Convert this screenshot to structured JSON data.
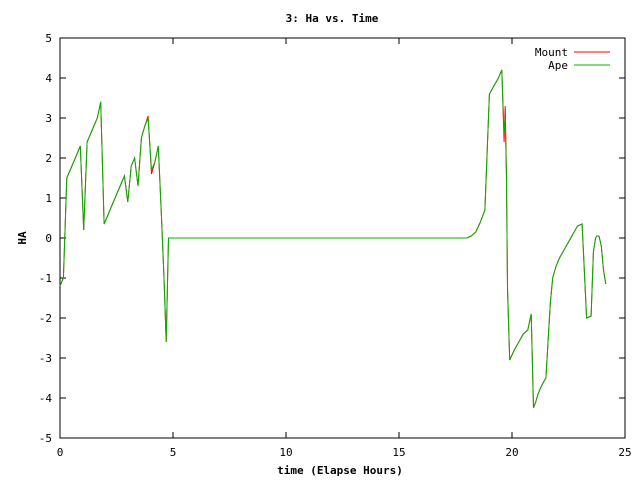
{
  "chart_data": {
    "type": "line",
    "title": "3: Ha vs. Time",
    "xlabel": "time (Elapse Hours)",
    "ylabel": "HA",
    "xlim": [
      0,
      25
    ],
    "ylim": [
      -5,
      5
    ],
    "xticks": [
      0,
      5,
      10,
      15,
      20,
      25
    ],
    "yticks": [
      -5,
      -4,
      -3,
      -2,
      -1,
      0,
      1,
      2,
      3,
      4,
      5
    ],
    "grid": false,
    "legend_position": "top-right",
    "series": [
      {
        "name": "Mount",
        "color": "#ff0000",
        "x": [
          0.0,
          0.15,
          0.3,
          0.45,
          0.6,
          0.75,
          0.9,
          1.05,
          1.2,
          1.35,
          1.5,
          1.65,
          1.8,
          1.95,
          2.1,
          2.25,
          2.4,
          2.55,
          2.7,
          2.85,
          3.0,
          3.15,
          3.3,
          3.45,
          3.6,
          3.75,
          3.9,
          4.05,
          4.2,
          4.35,
          4.5,
          4.6,
          4.7,
          4.8,
          4.95,
          5.1,
          5.25,
          5.4,
          5.55,
          5.7,
          5.85,
          6.0,
          8.0,
          10.0,
          12.0,
          14.0,
          16.0,
          18.0,
          18.2,
          18.4,
          18.6,
          18.8,
          19.0,
          19.2,
          19.4,
          19.55,
          19.65,
          19.7,
          19.75,
          19.8,
          19.9,
          20.1,
          20.3,
          20.5,
          20.7,
          20.85,
          20.95,
          21.05,
          21.15,
          21.3,
          21.5,
          21.7,
          21.8,
          21.85,
          21.95,
          22.1,
          22.3,
          22.5,
          22.7,
          22.9,
          23.1,
          23.3,
          23.5,
          23.6,
          23.7,
          23.75,
          23.85,
          23.95,
          24.05,
          24.15
        ],
        "y": [
          -1.2,
          -1.0,
          1.5,
          1.7,
          1.9,
          2.1,
          2.3,
          0.2,
          2.4,
          2.6,
          2.8,
          3.0,
          3.4,
          0.35,
          0.55,
          0.75,
          0.95,
          1.15,
          1.35,
          1.55,
          0.9,
          1.8,
          2.0,
          1.3,
          2.5,
          2.8,
          3.05,
          1.6,
          1.9,
          2.3,
          0.4,
          -1.0,
          -2.6,
          0.0,
          0.0,
          0.0,
          0.0,
          0.0,
          0.0,
          0.0,
          0.0,
          0.0,
          0.0,
          0.0,
          0.0,
          0.0,
          0.0,
          0.0,
          0.05,
          0.15,
          0.4,
          0.7,
          3.6,
          3.8,
          4.0,
          4.2,
          2.4,
          3.3,
          1.7,
          -1.3,
          -3.05,
          -2.8,
          -2.6,
          -2.4,
          -2.3,
          -1.9,
          -4.25,
          -4.1,
          -3.9,
          -3.7,
          -3.5,
          -1.6,
          -1.0,
          -0.9,
          -0.7,
          -0.5,
          -0.3,
          -0.1,
          0.1,
          0.3,
          0.35,
          -2.0,
          -1.95,
          -0.35,
          0.0,
          0.05,
          0.05,
          -0.2,
          -0.8,
          -1.15
        ]
      },
      {
        "name": "Ape",
        "color": "#00b000",
        "x": [
          0.0,
          0.15,
          0.3,
          0.45,
          0.6,
          0.75,
          0.9,
          1.05,
          1.2,
          1.35,
          1.5,
          1.65,
          1.8,
          1.95,
          2.1,
          2.25,
          2.4,
          2.55,
          2.7,
          2.85,
          3.0,
          3.15,
          3.3,
          3.45,
          3.6,
          3.75,
          3.9,
          4.05,
          4.2,
          4.35,
          4.5,
          4.6,
          4.7,
          4.8,
          4.95,
          5.1,
          5.25,
          5.4,
          5.55,
          5.7,
          5.85,
          6.0,
          8.0,
          10.0,
          12.0,
          14.0,
          16.0,
          18.0,
          18.2,
          18.4,
          18.6,
          18.8,
          19.0,
          19.2,
          19.4,
          19.55,
          19.65,
          19.7,
          19.75,
          19.8,
          19.9,
          20.1,
          20.3,
          20.5,
          20.7,
          20.85,
          20.95,
          21.05,
          21.15,
          21.3,
          21.5,
          21.7,
          21.8,
          21.85,
          21.95,
          22.1,
          22.3,
          22.5,
          22.7,
          22.9,
          23.1,
          23.3,
          23.5,
          23.6,
          23.7,
          23.75,
          23.85,
          23.95,
          24.05,
          24.15
        ],
        "y": [
          -1.2,
          -1.0,
          1.5,
          1.7,
          1.9,
          2.1,
          2.3,
          0.2,
          2.4,
          2.6,
          2.8,
          3.0,
          3.4,
          0.35,
          0.55,
          0.75,
          0.95,
          1.15,
          1.35,
          1.55,
          0.9,
          1.8,
          2.0,
          1.3,
          2.5,
          2.8,
          3.0,
          1.7,
          1.9,
          2.3,
          0.4,
          -1.0,
          -2.6,
          0.0,
          0.0,
          0.0,
          0.0,
          0.0,
          0.0,
          0.0,
          0.0,
          0.0,
          0.0,
          0.0,
          0.0,
          0.0,
          0.0,
          0.0,
          0.05,
          0.15,
          0.4,
          0.7,
          3.6,
          3.8,
          4.0,
          4.2,
          2.6,
          3.0,
          1.6,
          -1.2,
          -3.05,
          -2.8,
          -2.6,
          -2.4,
          -2.3,
          -1.9,
          -4.25,
          -4.1,
          -3.9,
          -3.7,
          -3.5,
          -1.6,
          -1.0,
          -0.9,
          -0.7,
          -0.5,
          -0.3,
          -0.1,
          0.1,
          0.3,
          0.35,
          -2.0,
          -1.95,
          -0.35,
          0.0,
          0.05,
          0.05,
          -0.2,
          -0.8,
          -1.15
        ]
      }
    ]
  }
}
